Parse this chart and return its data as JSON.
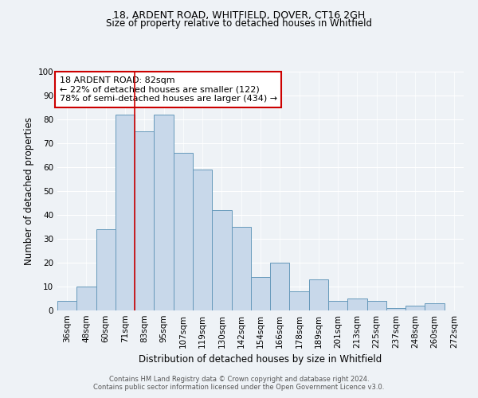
{
  "title1": "18, ARDENT ROAD, WHITFIELD, DOVER, CT16 2GH",
  "title2": "Size of property relative to detached houses in Whitfield",
  "xlabel": "Distribution of detached houses by size in Whitfield",
  "ylabel": "Number of detached properties",
  "footer1": "Contains HM Land Registry data © Crown copyright and database right 2024.",
  "footer2": "Contains public sector information licensed under the Open Government Licence v3.0.",
  "bar_labels": [
    "36sqm",
    "48sqm",
    "60sqm",
    "71sqm",
    "83sqm",
    "95sqm",
    "107sqm",
    "119sqm",
    "130sqm",
    "142sqm",
    "154sqm",
    "166sqm",
    "178sqm",
    "189sqm",
    "201sqm",
    "213sqm",
    "225sqm",
    "237sqm",
    "248sqm",
    "260sqm",
    "272sqm"
  ],
  "bar_values": [
    4,
    10,
    34,
    82,
    75,
    82,
    66,
    59,
    42,
    35,
    14,
    20,
    8,
    13,
    4,
    5,
    4,
    1,
    2,
    3,
    0
  ],
  "bar_color": "#c8d8ea",
  "bar_edge_color": "#6699bb",
  "property_label": "18 ARDENT ROAD: 82sqm",
  "annotation_line1": "← 22% of detached houses are smaller (122)",
  "annotation_line2": "78% of semi-detached houses are larger (434) →",
  "vline_index": 4,
  "vline_color": "#cc0000",
  "annotation_box_facecolor": "#ffffff",
  "annotation_box_edgecolor": "#cc0000",
  "ylim": [
    0,
    100
  ],
  "yticks": [
    0,
    10,
    20,
    30,
    40,
    50,
    60,
    70,
    80,
    90,
    100
  ],
  "background_color": "#eef2f6",
  "title_fontsize": 9,
  "subtitle_fontsize": 8.5,
  "axis_label_fontsize": 8.5,
  "tick_fontsize": 7.5,
  "annotation_fontsize": 8,
  "footer_fontsize": 6
}
